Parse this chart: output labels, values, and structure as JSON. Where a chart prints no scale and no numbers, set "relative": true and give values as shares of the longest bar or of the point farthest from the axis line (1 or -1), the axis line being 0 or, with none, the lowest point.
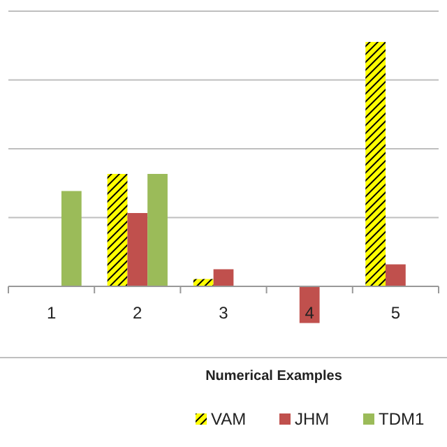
{
  "chart_data": {
    "type": "bar",
    "xlabel": "Numerical Examples",
    "categories": [
      "1",
      "2",
      "3",
      "4",
      "5"
    ],
    "relative": true,
    "grid": true,
    "legend": "bottom",
    "series": [
      {
        "name": "VAM",
        "color": "#ffff00",
        "values": [
          null,
          0.46,
          0.03,
          null,
          1
        ]
      },
      {
        "name": "JHM",
        "color": "#c0504d",
        "values": [
          null,
          0.3,
          0.07,
          -0.15,
          0.09
        ]
      },
      {
        "name": "TDM1",
        "color": "#9bbb59",
        "values": [
          0.39,
          0.46,
          null,
          null,
          null
        ]
      }
    ]
  }
}
